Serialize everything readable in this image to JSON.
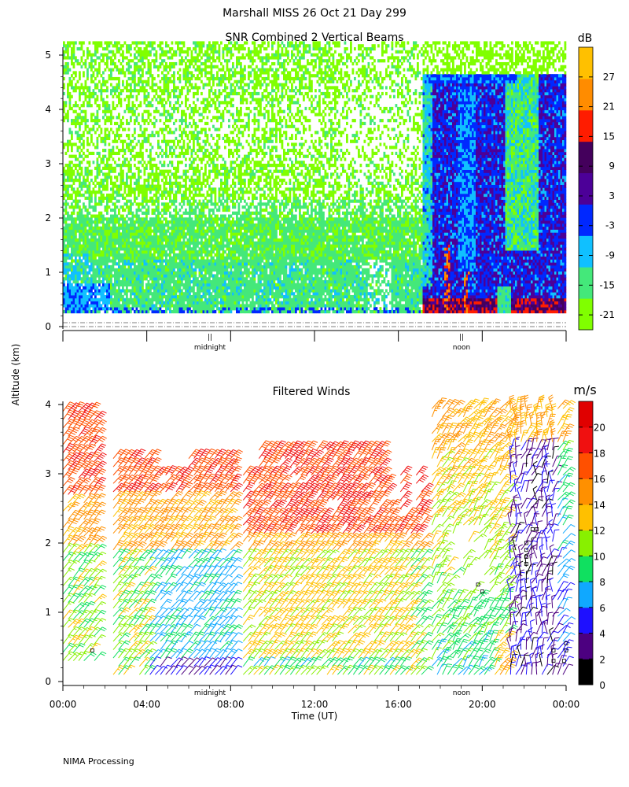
{
  "header": {
    "title": "Marshall MISS   26 Oct 21 Day 299"
  },
  "footer": {
    "text": "NIMA Processing"
  },
  "chart_data": [
    {
      "type": "heatmap",
      "title": "SNR Combined 2 Vertical Beams",
      "ylabel": "Altitude (km)",
      "ylim": [
        0,
        5.2
      ],
      "yticks": [
        "0",
        "1",
        "2",
        "3",
        "4",
        "5"
      ],
      "x_markers": [
        "midnight",
        "noon"
      ],
      "colorbar": {
        "unit": "dB",
        "range": [
          -24,
          33
        ],
        "ticks": [
          "27",
          "21",
          "15",
          "9",
          "3",
          "-3",
          "-9",
          "-15",
          "-21"
        ],
        "colors": [
          "#80ff00",
          "#44e87a",
          "#10c0ff",
          "#0028ff",
          "#4c0098",
          "#44005c",
          "#ff1c00",
          "#ff8c00",
          "#ffc000"
        ]
      },
      "regions": [
        {
          "t": [
            0,
            17
          ],
          "z": [
            0.25,
            5.2
          ],
          "snr_db": [
            -21,
            -9
          ],
          "description": "weak returns, sparse above 2.5 km"
        },
        {
          "t": [
            0,
            2
          ],
          "z": [
            0.25,
            0.8
          ],
          "snr_db": [
            -3,
            3
          ]
        },
        {
          "t": [
            17.1,
            24
          ],
          "z": [
            0.25,
            4.6
          ],
          "snr_db": [
            -3,
            21
          ],
          "description": "daytime boundary layer, strong returns"
        },
        {
          "t": [
            17.1,
            21.5
          ],
          "z": [
            4.4,
            4.7
          ],
          "snr_db": [
            -3,
            3
          ]
        }
      ]
    },
    {
      "type": "scatter",
      "subtype": "wind-barbs",
      "title": "Filtered Winds",
      "xlabel": "Time (UT)",
      "ylabel": "Altitude (km)",
      "xlim": [
        0,
        24
      ],
      "ylim": [
        0,
        4
      ],
      "xticks": [
        "00:00",
        "04:00",
        "08:00",
        "12:00",
        "16:00",
        "20:00",
        "00:00"
      ],
      "yticks": [
        "0",
        "1",
        "2",
        "3",
        "4"
      ],
      "x_markers": [
        "midnight",
        "noon"
      ],
      "colorbar": {
        "unit": "m/s",
        "range": [
          0,
          22
        ],
        "ticks": [
          "20",
          "18",
          "16",
          "14",
          "12",
          "10",
          "8",
          "6",
          "4",
          "2",
          "0"
        ],
        "colors": [
          "#000000",
          "#4c0080",
          "#1e10ff",
          "#10a8ff",
          "#10e060",
          "#88f000",
          "#ffc000",
          "#ff9000",
          "#ff5000",
          "#f01010",
          "#e00000"
        ]
      },
      "wind_regions": [
        {
          "t": [
            0,
            1.5
          ],
          "z": [
            0.3,
            4.0
          ],
          "speed": [
            4,
            19
          ]
        },
        {
          "t": [
            2.4,
            5.7
          ],
          "z": [
            0.1,
            3.3
          ],
          "speed": [
            2,
            19
          ]
        },
        {
          "t": [
            6.0,
            8.0
          ],
          "z": [
            0.1,
            3.3
          ],
          "speed": [
            4,
            19
          ]
        },
        {
          "t": [
            8.6,
            17.1
          ],
          "z": [
            0.1,
            3.4
          ],
          "speed": [
            2,
            19
          ]
        },
        {
          "t": [
            17.6,
            24
          ],
          "z": [
            0.1,
            4.0
          ],
          "speed": [
            0,
            17
          ]
        }
      ]
    }
  ]
}
